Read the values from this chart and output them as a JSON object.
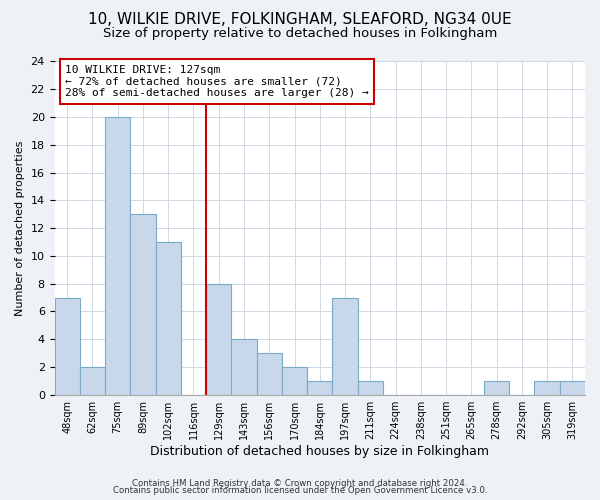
{
  "title": "10, WILKIE DRIVE, FOLKINGHAM, SLEAFORD, NG34 0UE",
  "subtitle": "Size of property relative to detached houses in Folkingham",
  "xlabel": "Distribution of detached houses by size in Folkingham",
  "ylabel": "Number of detached properties",
  "bar_heights": [
    7,
    2,
    20,
    13,
    11,
    0,
    8,
    4,
    3,
    2,
    1,
    7,
    1,
    0,
    0,
    0,
    0,
    1,
    0,
    1,
    1
  ],
  "x_tick_labels": [
    "48sqm",
    "62sqm",
    "75sqm",
    "89sqm",
    "102sqm",
    "116sqm",
    "129sqm",
    "143sqm",
    "156sqm",
    "170sqm",
    "184sqm",
    "197sqm",
    "211sqm",
    "224sqm",
    "238sqm",
    "251sqm",
    "265sqm",
    "278sqm",
    "292sqm",
    "305sqm",
    "319sqm"
  ],
  "bar_color": "#c8d8ea",
  "bar_edge_color": "#7aaac8",
  "vline_color": "#cc0000",
  "vline_index": 6,
  "ylim": [
    0,
    24
  ],
  "yticks": [
    0,
    2,
    4,
    6,
    8,
    10,
    12,
    14,
    16,
    18,
    20,
    22,
    24
  ],
  "annotation_line1": "10 WILKIE DRIVE: 127sqm",
  "annotation_line2": "← 72% of detached houses are smaller (72)",
  "annotation_line3": "28% of semi-detached houses are larger (28) →",
  "footer_line1": "Contains HM Land Registry data © Crown copyright and database right 2024.",
  "footer_line2": "Contains public sector information licensed under the Open Government Licence v3.0.",
  "title_fontsize": 11,
  "subtitle_fontsize": 9.5,
  "xlabel_fontsize": 9,
  "ylabel_fontsize": 8,
  "background_color": "#eef2f7",
  "plot_background_color": "#ffffff",
  "grid_color": "#d0d8e4"
}
